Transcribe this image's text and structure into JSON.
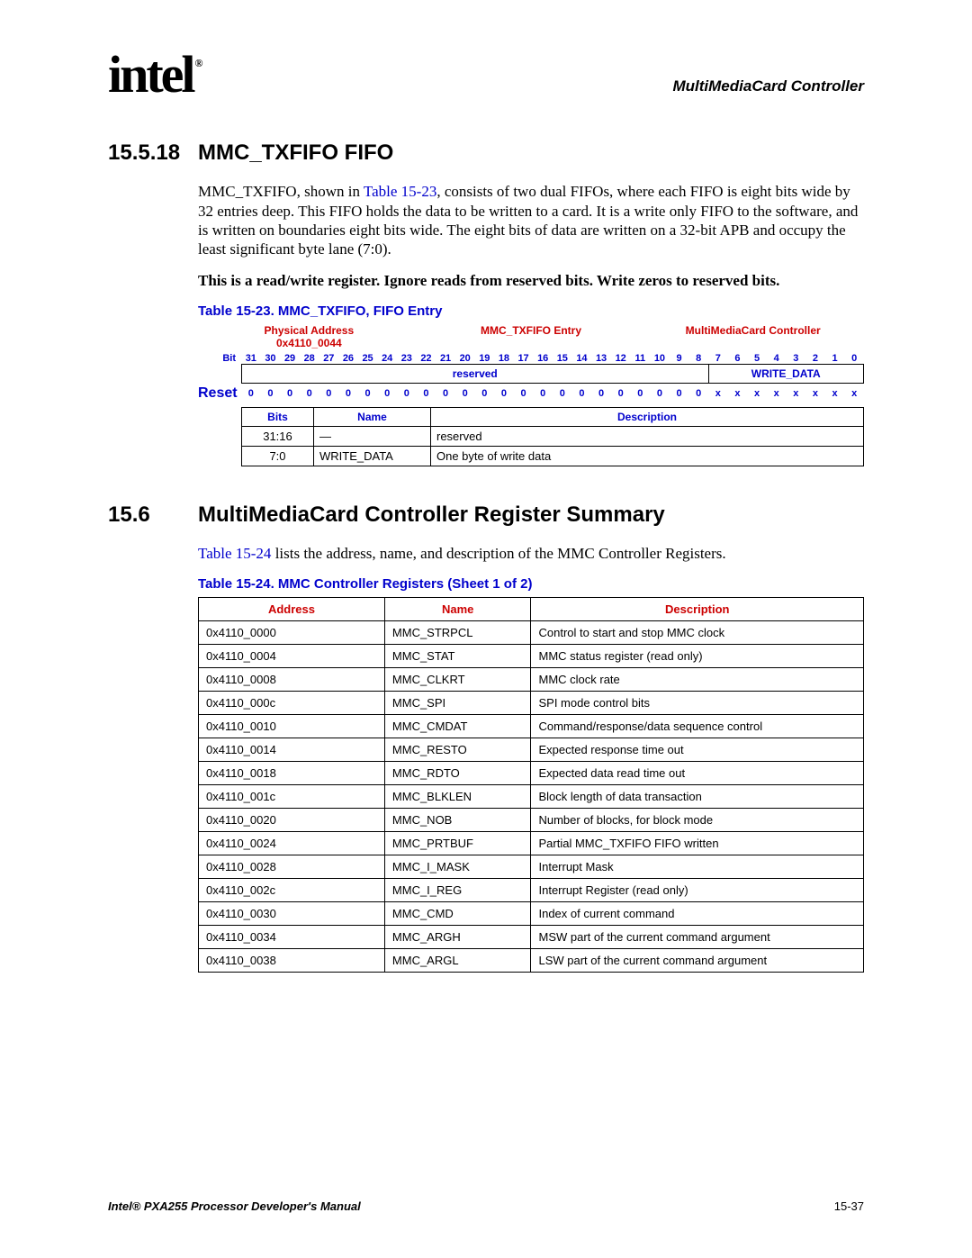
{
  "header": {
    "logo_text": "intel",
    "reg_mark": "®",
    "doc_title": "MultiMediaCard Controller"
  },
  "section_1": {
    "number": "15.5.18",
    "title": "MMC_TXFIFO FIFO",
    "para1a": "MMC_TXFIFO, shown in ",
    "para1_link": "Table 15-23",
    "para1b": ", consists of two dual FIFOs, where each FIFO is eight bits wide by 32 entries deep. This FIFO holds the data to be written to a card. It is a write only FIFO to the software, and is written on boundaries eight bits wide. The eight bits of data are written on a 32-bit APB and occupy the least significant byte lane (7:0).",
    "para2": "This is a read/write register. Ignore reads from reserved bits. Write zeros to reserved bits.",
    "caption": "Table 15-23. MMC_TXFIFO, FIFO Entry"
  },
  "bit_table": {
    "col_headers": {
      "left1": "Physical Address",
      "left2": "0x4110_0044",
      "mid": "MMC_TXFIFO Entry",
      "right": "MultiMediaCard Controller"
    },
    "bit_label": "Bit",
    "bits": [
      "31",
      "30",
      "29",
      "28",
      "27",
      "26",
      "25",
      "24",
      "23",
      "22",
      "21",
      "20",
      "19",
      "18",
      "17",
      "16",
      "15",
      "14",
      "13",
      "12",
      "11",
      "10",
      "9",
      "8",
      "7",
      "6",
      "5",
      "4",
      "3",
      "2",
      "1",
      "0"
    ],
    "fields": {
      "reserved": "reserved",
      "write_data": "WRITE_DATA"
    },
    "reset_label": "Reset",
    "reset_values": [
      "0",
      "0",
      "0",
      "0",
      "0",
      "0",
      "0",
      "0",
      "0",
      "0",
      "0",
      "0",
      "0",
      "0",
      "0",
      "0",
      "0",
      "0",
      "0",
      "0",
      "0",
      "0",
      "0",
      "0",
      "x",
      "x",
      "x",
      "x",
      "x",
      "x",
      "x",
      "x"
    ],
    "desc_headers": {
      "bits": "Bits",
      "name": "Name",
      "description": "Description"
    },
    "desc_rows": [
      {
        "bits": "31:16",
        "name": "—",
        "desc": "reserved"
      },
      {
        "bits": "7:0",
        "name": "WRITE_DATA",
        "desc": "One byte of write data"
      }
    ]
  },
  "section_2": {
    "number": "15.6",
    "title": "MultiMediaCard Controller Register Summary",
    "para_link": "Table 15-24",
    "para_rest": " lists the address, name, and description of the MMC Controller Registers.",
    "caption": "Table 15-24. MMC Controller Registers (Sheet 1 of 2)"
  },
  "reg_table": {
    "headers": {
      "address": "Address",
      "name": "Name",
      "description": "Description"
    },
    "rows": [
      {
        "addr": "0x4110_0000",
        "name": "MMC_STRPCL",
        "desc": "Control to start and stop MMC clock"
      },
      {
        "addr": "0x4110_0004",
        "name": "MMC_STAT",
        "desc": "MMC status register (read only)"
      },
      {
        "addr": "0x4110_0008",
        "name": "MMC_CLKRT",
        "desc": "MMC clock rate"
      },
      {
        "addr": "0x4110_000c",
        "name": "MMC_SPI",
        "desc": "SPI mode control bits"
      },
      {
        "addr": "0x4110_0010",
        "name": "MMC_CMDAT",
        "desc": "Command/response/data sequence control"
      },
      {
        "addr": "0x4110_0014",
        "name": "MMC_RESTO",
        "desc": "Expected response time out"
      },
      {
        "addr": "0x4110_0018",
        "name": "MMC_RDTO",
        "desc": "Expected data read time out"
      },
      {
        "addr": "0x4110_001c",
        "name": "MMC_BLKLEN",
        "desc": "Block length of data transaction"
      },
      {
        "addr": "0x4110_0020",
        "name": "MMC_NOB",
        "desc": "Number of blocks, for block mode"
      },
      {
        "addr": "0x4110_0024",
        "name": "MMC_PRTBUF",
        "desc": "Partial MMC_TXFIFO FIFO written"
      },
      {
        "addr": "0x4110_0028",
        "name": "MMC_I_MASK",
        "desc": "Interrupt Mask"
      },
      {
        "addr": "0x4110_002c",
        "name": "MMC_I_REG",
        "desc": "Interrupt Register (read only)"
      },
      {
        "addr": "0x4110_0030",
        "name": "MMC_CMD",
        "desc": "Index of current command"
      },
      {
        "addr": "0x4110_0034",
        "name": "MMC_ARGH",
        "desc": "MSW part of the current command argument"
      },
      {
        "addr": "0x4110_0038",
        "name": "MMC_ARGL",
        "desc": "LSW part of the current command argument"
      }
    ]
  },
  "footer": {
    "left": "Intel® PXA255 Processor Developer's Manual",
    "right": "15-37"
  }
}
